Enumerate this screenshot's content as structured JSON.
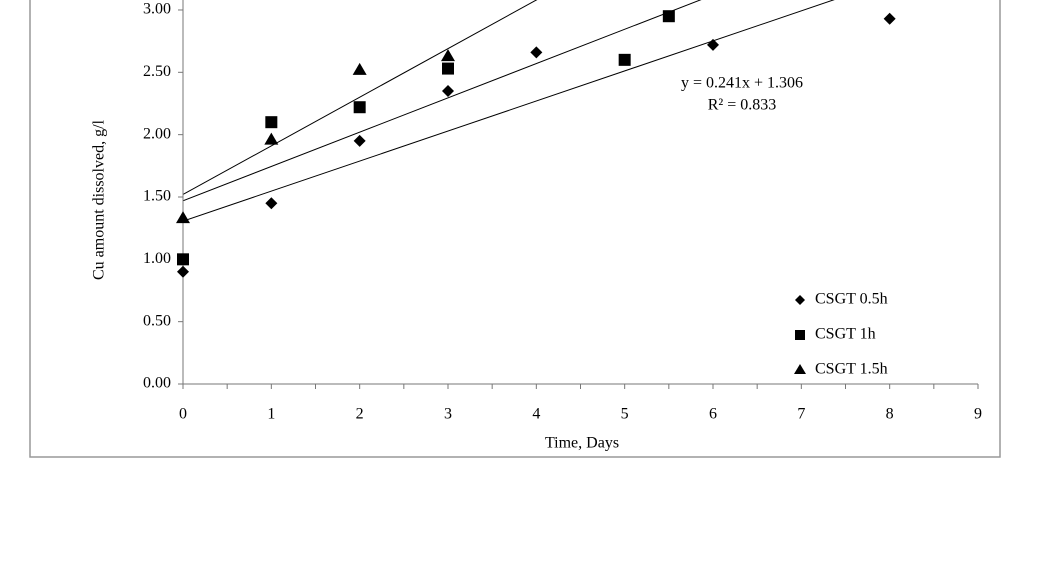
{
  "chart_data": {
    "type": "scatter",
    "y_label": "Cu amount dissolved, g/l",
    "x_label": "Time, Days",
    "xlim": [
      0,
      9
    ],
    "xticks": [
      0,
      1,
      2,
      3,
      4,
      5,
      6,
      7,
      8,
      9
    ],
    "ylim": [
      0,
      3.08
    ],
    "yticks": [
      {
        "value": 0,
        "label": "0.00"
      },
      {
        "value": 0.5,
        "label": "0.50"
      },
      {
        "value": 1,
        "label": "1.00"
      },
      {
        "value": 1.5,
        "label": "1.50"
      },
      {
        "value": 2,
        "label": "2.00"
      },
      {
        "value": 2.5,
        "label": "2.50"
      },
      {
        "value": 3,
        "label": "3.00"
      }
    ],
    "legend": "lower right",
    "series": [
      {
        "name": "CSGT 0.5h",
        "marker": "diamond",
        "color": "#000000",
        "x": [
          0,
          1,
          2,
          3,
          4,
          6,
          8
        ],
        "values": [
          0.9,
          1.45,
          1.95,
          2.35,
          2.66,
          2.72,
          2.93
        ],
        "trend": {
          "slope": 0.241,
          "intercept": 1.306
        }
      },
      {
        "name": "CSGT 1h",
        "marker": "square",
        "color": "#000000",
        "x": [
          0,
          1,
          2,
          3,
          5,
          5.5
        ],
        "values": [
          1.0,
          2.1,
          2.22,
          2.53,
          2.6,
          2.95
        ],
        "trend": {
          "slope": 0.275,
          "intercept": 1.47
        }
      },
      {
        "name": "CSGT 1.5h",
        "marker": "triangle",
        "color": "#000000",
        "x": [
          0,
          1,
          2,
          3
        ],
        "values": [
          1.33,
          1.96,
          2.52,
          2.63
        ],
        "trend": {
          "slope": 0.39,
          "intercept": 1.52
        }
      }
    ],
    "annotations": [
      "y = 0.241x + 1.306",
      "R² = 0.833"
    ]
  }
}
